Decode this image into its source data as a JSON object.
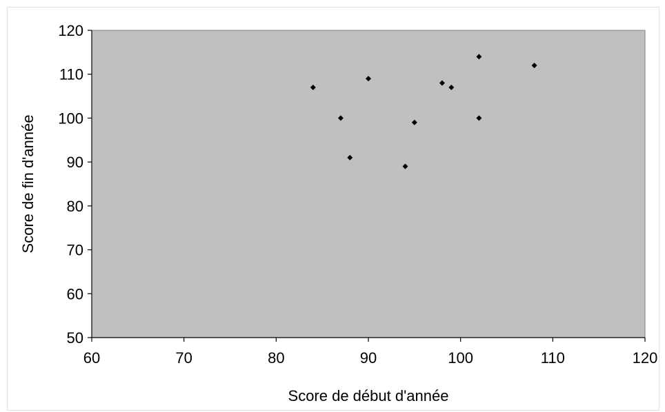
{
  "chart_data": {
    "type": "scatter",
    "title": "",
    "xlabel": "Score de début d'année",
    "ylabel": "Score de fin d'année",
    "xlim": [
      60,
      120
    ],
    "ylim": [
      50,
      120
    ],
    "xticks": [
      60,
      70,
      80,
      90,
      100,
      110,
      120
    ],
    "yticks": [
      50,
      60,
      70,
      80,
      90,
      100,
      110,
      120
    ],
    "grid": false,
    "legend": "none",
    "plot_background": "#c0c0c0",
    "marker_color": "#000000",
    "points": [
      {
        "x": 84,
        "y": 107
      },
      {
        "x": 87,
        "y": 100
      },
      {
        "x": 88,
        "y": 91
      },
      {
        "x": 90,
        "y": 109
      },
      {
        "x": 94,
        "y": 89
      },
      {
        "x": 95,
        "y": 99
      },
      {
        "x": 98,
        "y": 108
      },
      {
        "x": 99,
        "y": 107
      },
      {
        "x": 102,
        "y": 114
      },
      {
        "x": 102,
        "y": 100
      },
      {
        "x": 108,
        "y": 112
      }
    ]
  }
}
